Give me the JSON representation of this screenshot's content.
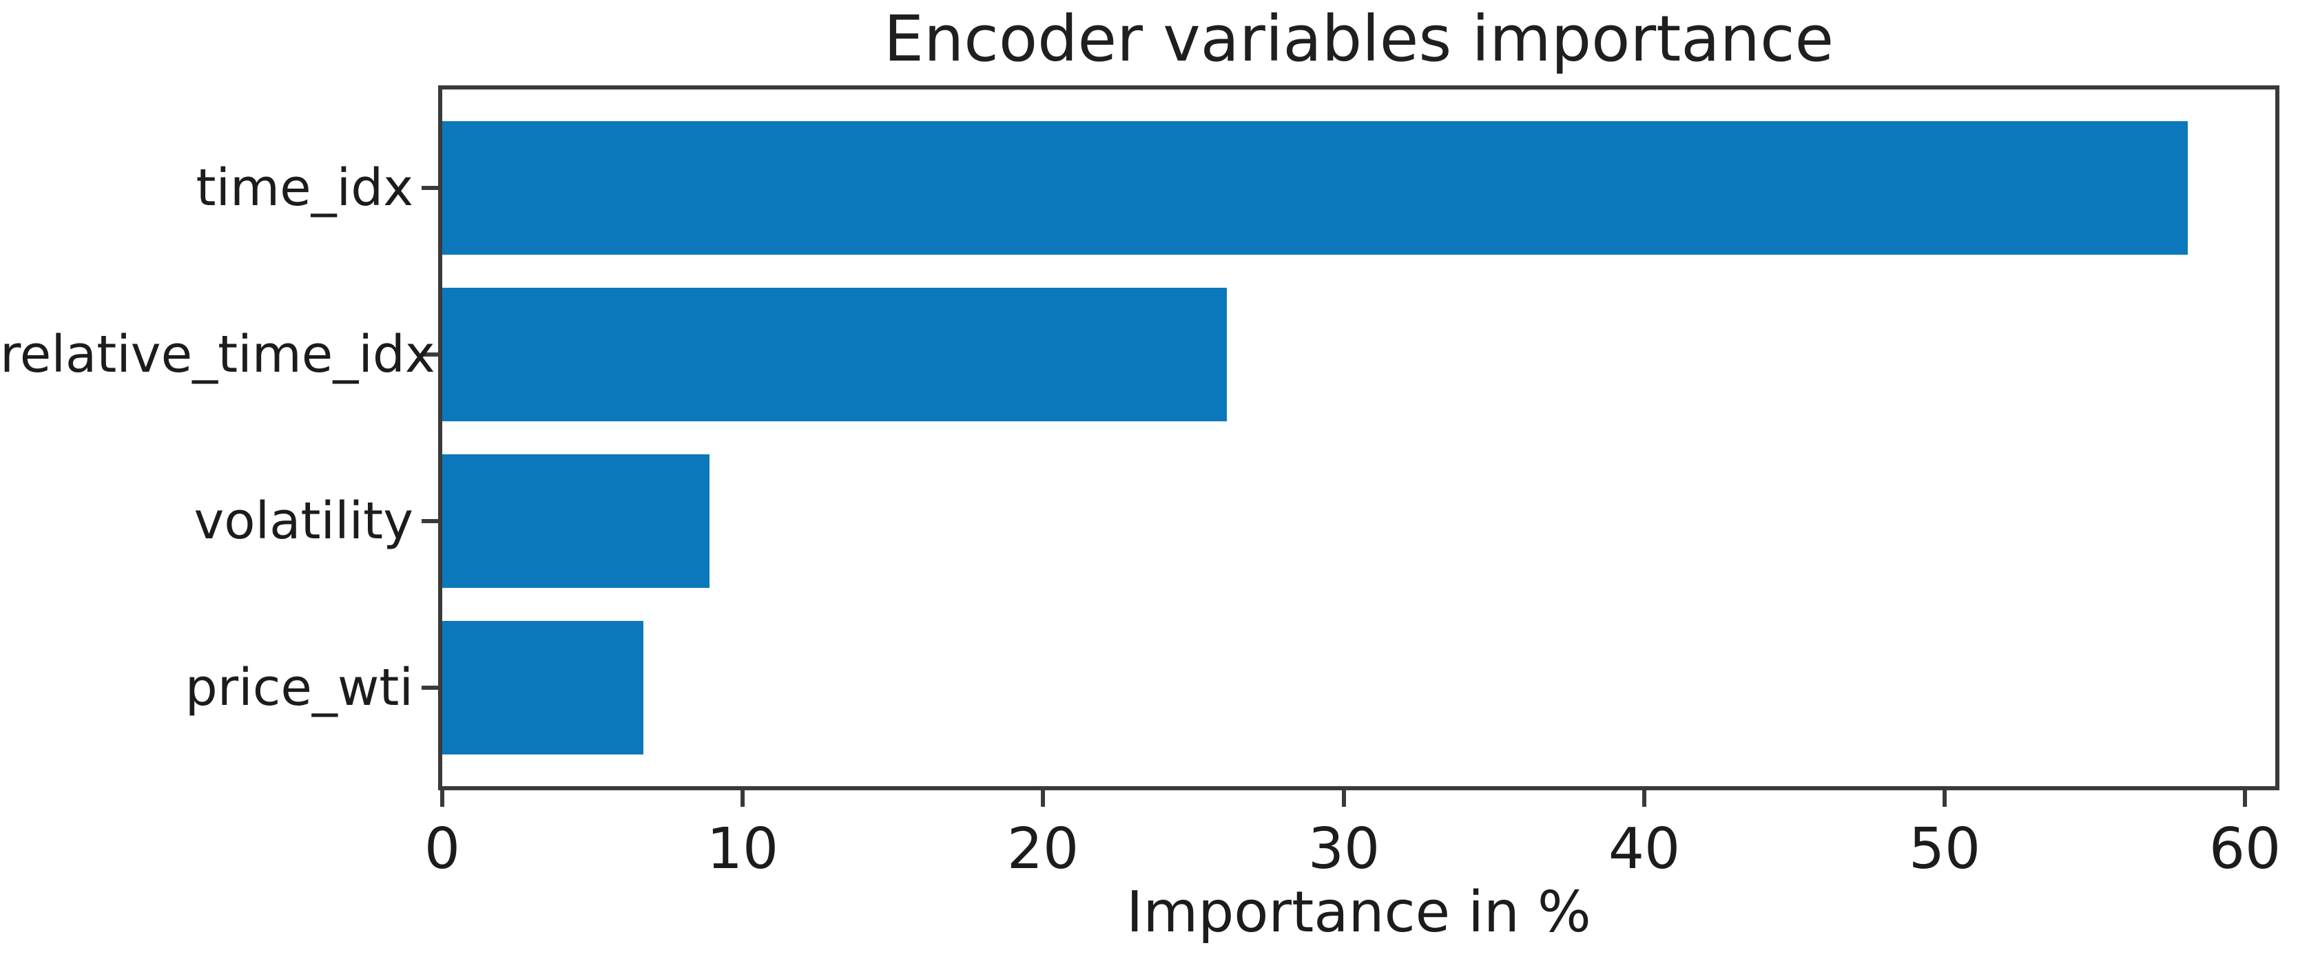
{
  "figure": {
    "background_color": "#ffffff"
  },
  "chart_data": {
    "type": "bar",
    "orientation": "horizontal",
    "title": "Encoder variables importance",
    "xlabel": "Importance in %",
    "ylabel": "",
    "categories": [
      "time_idx",
      "relative_time_idx",
      "volatility",
      "price_wti"
    ],
    "values": [
      58.1,
      26.1,
      8.9,
      6.7
    ],
    "xlim": [
      0,
      61
    ],
    "xticks": [
      0,
      10,
      20,
      30,
      40,
      50,
      60
    ],
    "grid": false,
    "legend": null,
    "bar_color": "#0b78bb",
    "axis_color": "#3a3a3a",
    "text_color": "#1c1c1c"
  }
}
